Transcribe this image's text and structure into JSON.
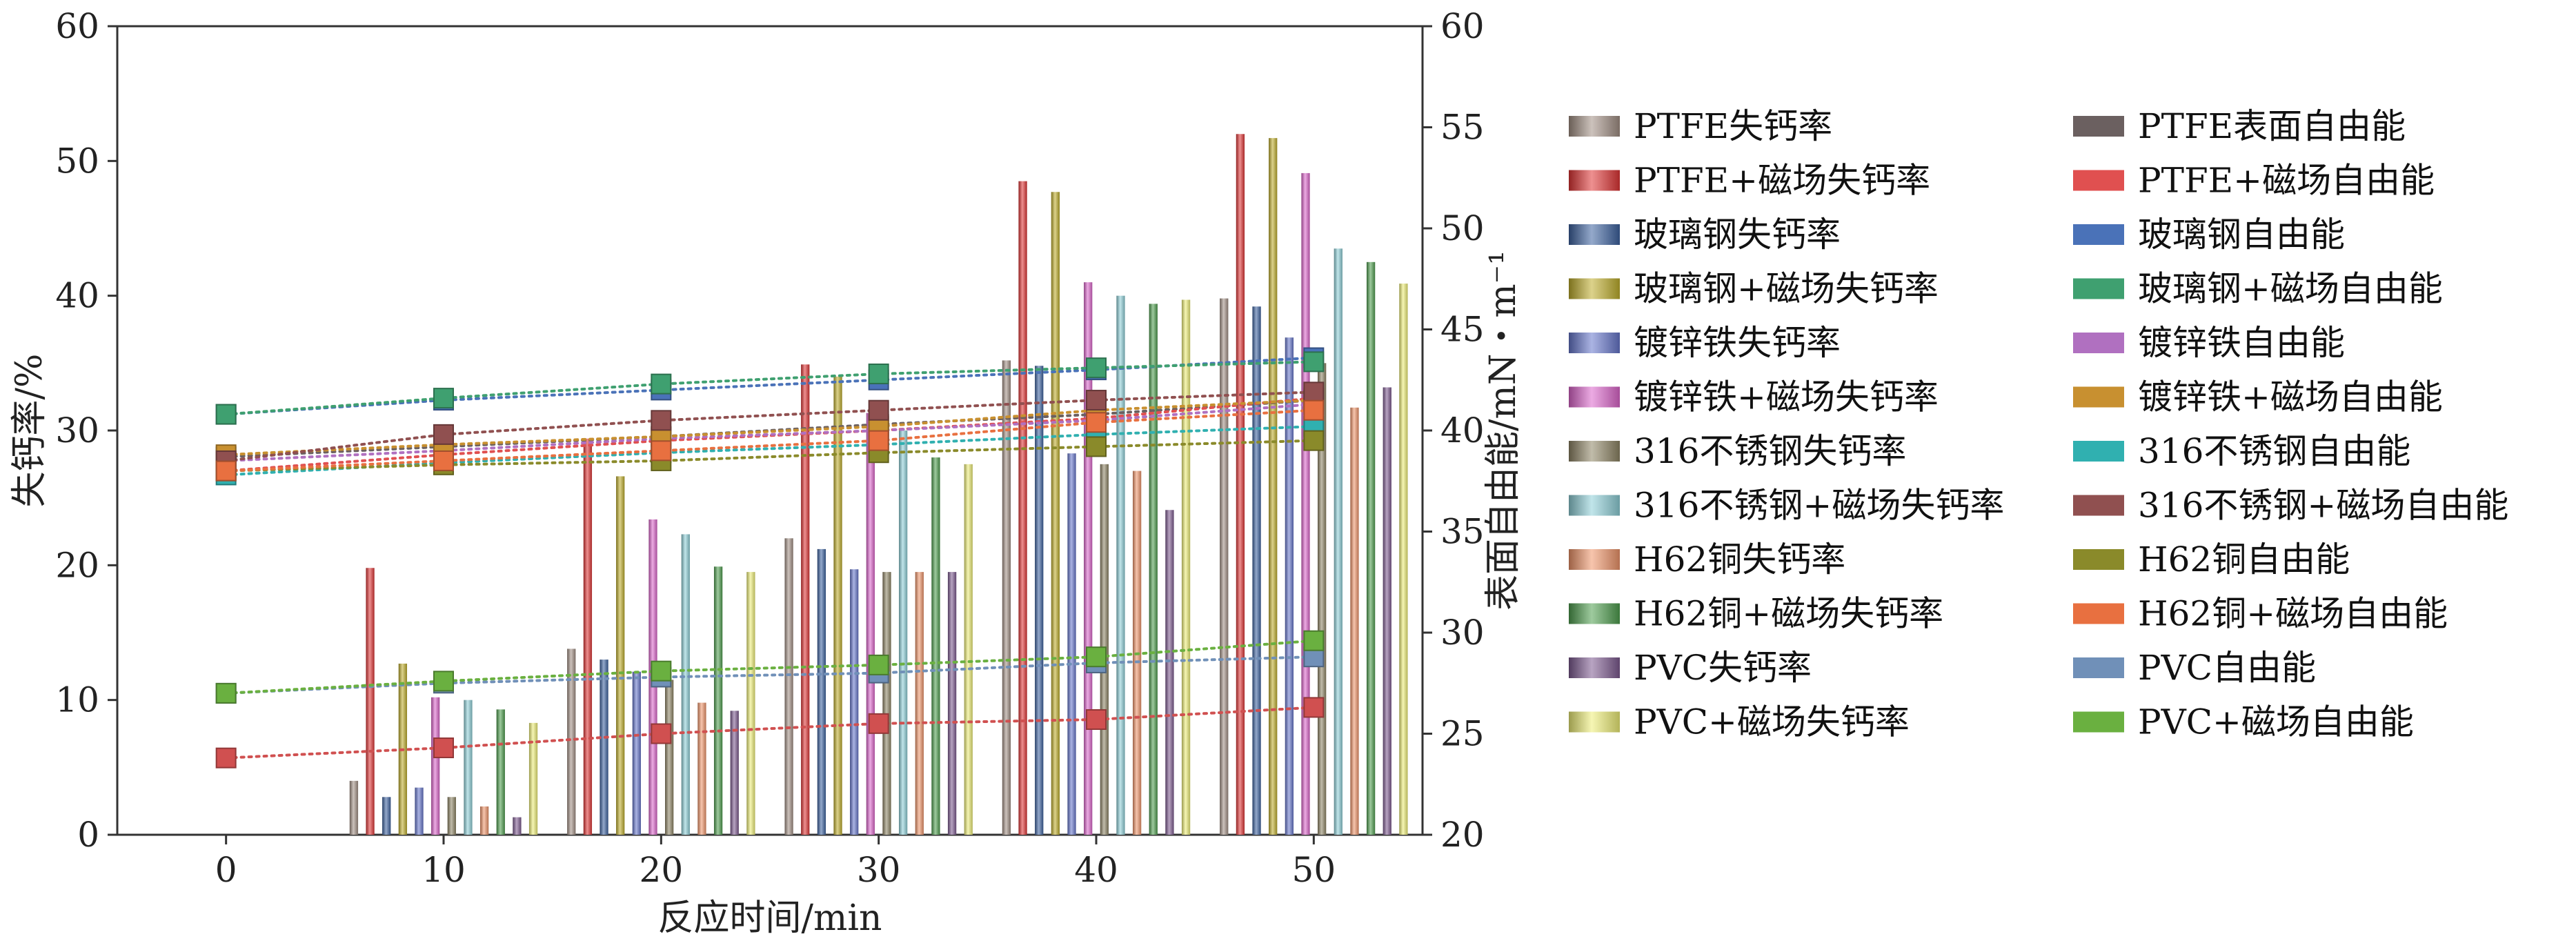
{
  "chart_data": {
    "type": "bar",
    "title": "",
    "xlabel": "反应时间/min",
    "ylabel": "失钙率/%",
    "ylabel_right": "表面自由能/mN・m⁻¹",
    "x": [
      0,
      10,
      20,
      30,
      40,
      50
    ],
    "x_ticks": [
      "0",
      "10",
      "20",
      "30",
      "40",
      "50"
    ],
    "xlim": [
      -5,
      55
    ],
    "ylim": [
      0,
      60
    ],
    "ylim_right": [
      20,
      60
    ],
    "y_ticks": [
      "0",
      "10",
      "20",
      "30",
      "40",
      "50",
      "60"
    ],
    "y_ticks_right": [
      "20",
      "25",
      "30",
      "35",
      "40",
      "45",
      "50",
      "55",
      "60"
    ],
    "bar_series": [
      {
        "name": "PTFE失钙率",
        "color": "#a39085",
        "values": [
          0,
          4.0,
          13.8,
          22.0,
          35.2,
          39.8
        ]
      },
      {
        "name": "PTFE+磁场失钙率",
        "color": "#e03535",
        "values": [
          0,
          19.8,
          29.4,
          34.9,
          48.5,
          52.0
        ]
      },
      {
        "name": "玻璃钢失钙率",
        "color": "#3d63a0",
        "values": [
          0,
          2.8,
          13.0,
          21.2,
          34.8,
          39.2
        ]
      },
      {
        "name": "玻璃钢+磁场失钙率",
        "color": "#bfae2c",
        "values": [
          0,
          12.7,
          26.6,
          34.0,
          47.7,
          51.7
        ]
      },
      {
        "name": "镀锌铁失钙率",
        "color": "#6677cc",
        "values": [
          0,
          3.5,
          12.1,
          19.7,
          28.3,
          36.9
        ]
      },
      {
        "name": "镀锌铁+磁场失钙率",
        "color": "#dd66cc",
        "values": [
          0,
          10.2,
          23.4,
          31.3,
          41.0,
          49.1
        ]
      },
      {
        "name": "316不锈钢失钙率",
        "color": "#8f8565",
        "values": [
          0,
          2.8,
          11.5,
          19.5,
          27.5,
          35.0
        ]
      },
      {
        "name": "316不锈钢+磁场失钙率",
        "color": "#8fd0d8",
        "values": [
          0,
          10.0,
          22.3,
          30.0,
          40.0,
          43.5
        ]
      },
      {
        "name": "H62铜失钙率",
        "color": "#f0956a",
        "values": [
          0,
          2.1,
          9.8,
          19.5,
          27.0,
          31.7
        ]
      },
      {
        "name": "H62铜+磁场失钙率",
        "color": "#4f9e4f",
        "values": [
          0,
          9.3,
          19.9,
          28.0,
          39.4,
          42.5
        ]
      },
      {
        "name": "PVC失钙率",
        "color": "#7d5a90",
        "values": [
          0,
          1.3,
          9.2,
          19.5,
          24.1,
          33.2
        ]
      },
      {
        "name": "PVC+磁场失钙率",
        "color": "#eeee77",
        "values": [
          0,
          8.3,
          19.5,
          27.5,
          39.7,
          40.9
        ]
      }
    ],
    "energy_series": [
      {
        "name": "PTFE表面自由能",
        "color": "#6b6060",
        "values": [
          38.7,
          39.2,
          39.7,
          40.3,
          40.8,
          41.5
        ]
      },
      {
        "name": "PTFE+磁场自由能",
        "color": "#e05050",
        "values": [
          38.0,
          38.8,
          39.5,
          40.0,
          40.6,
          41.6
        ]
      },
      {
        "name": "玻璃钢自由能",
        "color": "#4a72b8",
        "values": [
          40.8,
          41.5,
          42.0,
          42.5,
          43.0,
          43.6
        ]
      },
      {
        "name": "玻璃钢+磁场自由能",
        "color": "#3fa070",
        "values": [
          40.8,
          41.6,
          42.3,
          42.8,
          43.1,
          43.4
        ]
      },
      {
        "name": "镀锌铁自由能",
        "color": "#b070c0",
        "values": [
          38.5,
          39.0,
          39.6,
          40.0,
          40.5,
          41.3
        ]
      },
      {
        "name": "镀锌铁+磁场自由能",
        "color": "#c89030",
        "values": [
          38.8,
          39.3,
          39.7,
          40.2,
          41.0,
          41.5
        ]
      },
      {
        "name": "316不锈钢自由能",
        "color": "#30b0b0",
        "values": [
          37.8,
          38.4,
          38.9,
          39.3,
          39.8,
          40.2
        ]
      },
      {
        "name": "316不锈钢+磁场自由能",
        "color": "#905050",
        "values": [
          38.5,
          39.8,
          40.5,
          41.0,
          41.5,
          41.9
        ]
      },
      {
        "name": "H62铜自由能",
        "color": "#8a8a2a",
        "values": [
          38.0,
          38.3,
          38.5,
          38.9,
          39.2,
          39.5
        ]
      },
      {
        "name": "H62铜+磁场自由能",
        "color": "#e87040",
        "values": [
          38.0,
          38.5,
          39.0,
          39.5,
          40.4,
          41.0
        ]
      },
      {
        "name": "PVC自由能",
        "color": "#7090b8",
        "values": [
          27.0,
          27.5,
          27.8,
          28.0,
          28.5,
          28.8
        ]
      },
      {
        "name": "PVC+磁场自由能",
        "color": "#6ab040",
        "values": [
          27.0,
          27.6,
          28.1,
          28.4,
          28.8,
          29.6
        ]
      },
      {
        "name": "",
        "color": "#d05050",
        "values": [
          23.8,
          24.3,
          25.0,
          25.5,
          25.7,
          26.3
        ]
      }
    ],
    "legend": {
      "position": "right",
      "columns": 2
    }
  }
}
